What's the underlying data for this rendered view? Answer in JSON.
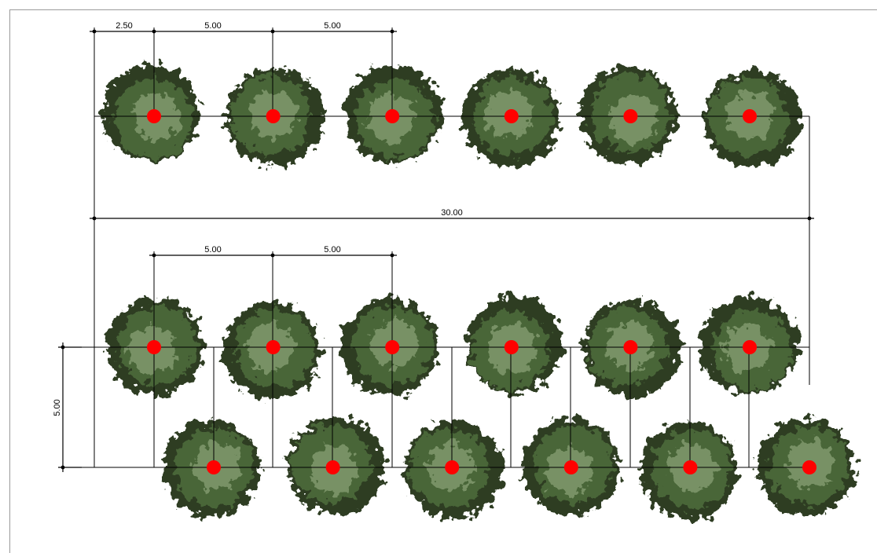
{
  "diagram": {
    "single_row": {
      "dimensions": [
        "2.50",
        "5.00",
        "5.00",
        "30.00"
      ],
      "tree_count": 6
    },
    "double_row": {
      "dimensions": [
        "5.00",
        "5.00",
        "5.00"
      ],
      "row1_tree_count": 6,
      "row2_tree_count": 6
    }
  },
  "colors": {
    "foliage_dark": "#2d3d24",
    "foliage_mid": "#4d6a3c",
    "foliage_light": "#9fb58a",
    "marker": "#ff0000",
    "line": "#000000"
  }
}
